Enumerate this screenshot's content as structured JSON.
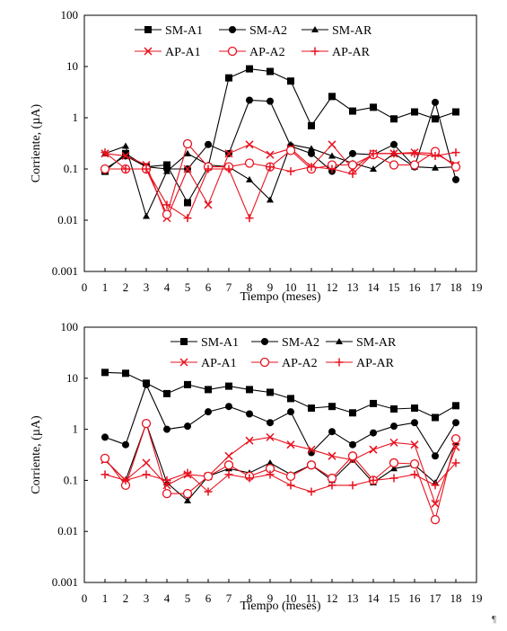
{
  "pilcrow": "¶",
  "chart_data": [
    {
      "type": "line",
      "title": "",
      "xlabel": "Tiempo (meses)",
      "ylabel": "Corriente, (µA)",
      "xlim": [
        0,
        19
      ],
      "ylim": [
        0.001,
        100
      ],
      "yscale": "log",
      "x_ticks": [
        "0",
        "1",
        "2",
        "3",
        "4",
        "5",
        "6",
        "7",
        "8",
        "9",
        "10",
        "11",
        "12",
        "13",
        "14",
        "15",
        "16",
        "17",
        "18",
        "19"
      ],
      "y_ticks": [
        "0.001",
        "0.01",
        "0.1",
        "1",
        "10",
        "100"
      ],
      "grid": false,
      "legend_position": "top",
      "x": [
        1,
        2,
        3,
        4,
        5,
        6,
        7,
        8,
        9,
        10,
        11,
        12,
        13,
        14,
        15,
        16,
        17,
        18
      ],
      "series": [
        {
          "name": "SM-A1",
          "color": "#000000",
          "marker": "square",
          "values": [
            0.09,
            0.2,
            0.11,
            0.12,
            0.022,
            0.11,
            6.0,
            9.0,
            8.0,
            5.2,
            0.7,
            2.6,
            1.35,
            1.6,
            0.95,
            1.3,
            0.95,
            1.3
          ]
        },
        {
          "name": "SM-A2",
          "color": "#000000",
          "marker": "circle",
          "values": [
            0.1,
            0.18,
            0.11,
            0.1,
            0.1,
            0.3,
            0.2,
            2.2,
            2.1,
            0.28,
            0.2,
            0.09,
            0.2,
            0.19,
            0.3,
            0.11,
            2.0,
            0.062
          ]
        },
        {
          "name": "SM-AR",
          "color": "#000000",
          "marker": "triangle",
          "values": [
            0.2,
            0.28,
            0.012,
            0.09,
            0.2,
            0.12,
            0.11,
            0.062,
            0.025,
            0.3,
            0.25,
            0.18,
            0.13,
            0.1,
            0.2,
            0.11,
            0.105,
            0.11
          ]
        },
        {
          "name": "AP-A1",
          "color": "#e8111e",
          "marker": "x",
          "values": [
            0.2,
            0.18,
            0.12,
            0.011,
            0.1,
            0.02,
            0.2,
            0.3,
            0.19,
            0.25,
            0.11,
            0.3,
            0.1,
            0.2,
            0.2,
            0.21,
            0.2,
            0.12
          ]
        },
        {
          "name": "AP-A2",
          "color": "#e8111e",
          "marker": "circle-open",
          "values": [
            0.1,
            0.1,
            0.1,
            0.013,
            0.31,
            0.11,
            0.11,
            0.13,
            0.11,
            0.23,
            0.1,
            0.12,
            0.12,
            0.19,
            0.12,
            0.12,
            0.22,
            0.11
          ]
        },
        {
          "name": "AP-AR",
          "color": "#e8111e",
          "marker": "plus",
          "values": [
            0.21,
            0.1,
            0.1,
            0.02,
            0.011,
            0.1,
            0.1,
            0.011,
            0.11,
            0.09,
            0.11,
            0.1,
            0.08,
            0.2,
            0.2,
            0.2,
            0.18,
            0.21
          ]
        }
      ]
    },
    {
      "type": "line",
      "title": "",
      "xlabel": "Tiempo (meses)",
      "ylabel": "Corriente, (µA)",
      "xlim": [
        0,
        19
      ],
      "ylim": [
        0.001,
        100
      ],
      "yscale": "log",
      "x_ticks": [
        "0",
        "1",
        "2",
        "3",
        "4",
        "5",
        "6",
        "7",
        "8",
        "9",
        "10",
        "11",
        "12",
        "13",
        "14",
        "15",
        "16",
        "17",
        "18",
        "19"
      ],
      "y_ticks": [
        "0.001",
        "0.01",
        "0.1",
        "1",
        "10",
        "100"
      ],
      "grid": false,
      "legend_position": "top",
      "x": [
        1,
        2,
        3,
        4,
        5,
        6,
        7,
        8,
        9,
        10,
        11,
        12,
        13,
        14,
        15,
        16,
        17,
        18
      ],
      "series": [
        {
          "name": "SM-A1",
          "color": "#000000",
          "marker": "square",
          "values": [
            13.0,
            12.5,
            8.0,
            5.0,
            7.5,
            6.0,
            7.0,
            6.0,
            5.3,
            4.0,
            2.6,
            2.8,
            2.1,
            3.2,
            2.5,
            2.6,
            1.7,
            2.9
          ]
        },
        {
          "name": "SM-A2",
          "color": "#000000",
          "marker": "circle",
          "values": [
            0.7,
            0.5,
            7.5,
            1.0,
            1.15,
            2.2,
            2.8,
            2.0,
            1.35,
            2.2,
            0.35,
            0.9,
            0.5,
            0.85,
            1.15,
            1.35,
            0.3,
            1.35
          ]
        },
        {
          "name": "SM-AR",
          "color": "#000000",
          "marker": "triangle",
          "values": [
            0.25,
            0.1,
            1.3,
            0.09,
            0.04,
            0.12,
            0.17,
            0.14,
            0.22,
            0.13,
            0.2,
            0.1,
            0.25,
            0.09,
            0.17,
            0.2,
            0.09,
            0.55
          ]
        },
        {
          "name": "AP-A1",
          "color": "#e8111e",
          "marker": "x",
          "values": [
            0.25,
            0.1,
            0.22,
            0.08,
            0.13,
            0.12,
            0.3,
            0.6,
            0.7,
            0.5,
            0.4,
            0.3,
            0.25,
            0.4,
            0.55,
            0.5,
            0.035,
            0.45
          ]
        },
        {
          "name": "AP-A2",
          "color": "#e8111e",
          "marker": "circle-open",
          "values": [
            0.27,
            0.08,
            1.3,
            0.055,
            0.055,
            0.12,
            0.2,
            0.12,
            0.17,
            0.12,
            0.2,
            0.11,
            0.3,
            0.1,
            0.22,
            0.21,
            0.017,
            0.65
          ]
        },
        {
          "name": "AP-AR",
          "color": "#e8111e",
          "marker": "plus",
          "values": [
            0.13,
            0.1,
            0.13,
            0.1,
            0.14,
            0.06,
            0.13,
            0.11,
            0.13,
            0.08,
            0.06,
            0.08,
            0.08,
            0.1,
            0.11,
            0.13,
            0.08,
            0.22
          ]
        }
      ]
    }
  ]
}
